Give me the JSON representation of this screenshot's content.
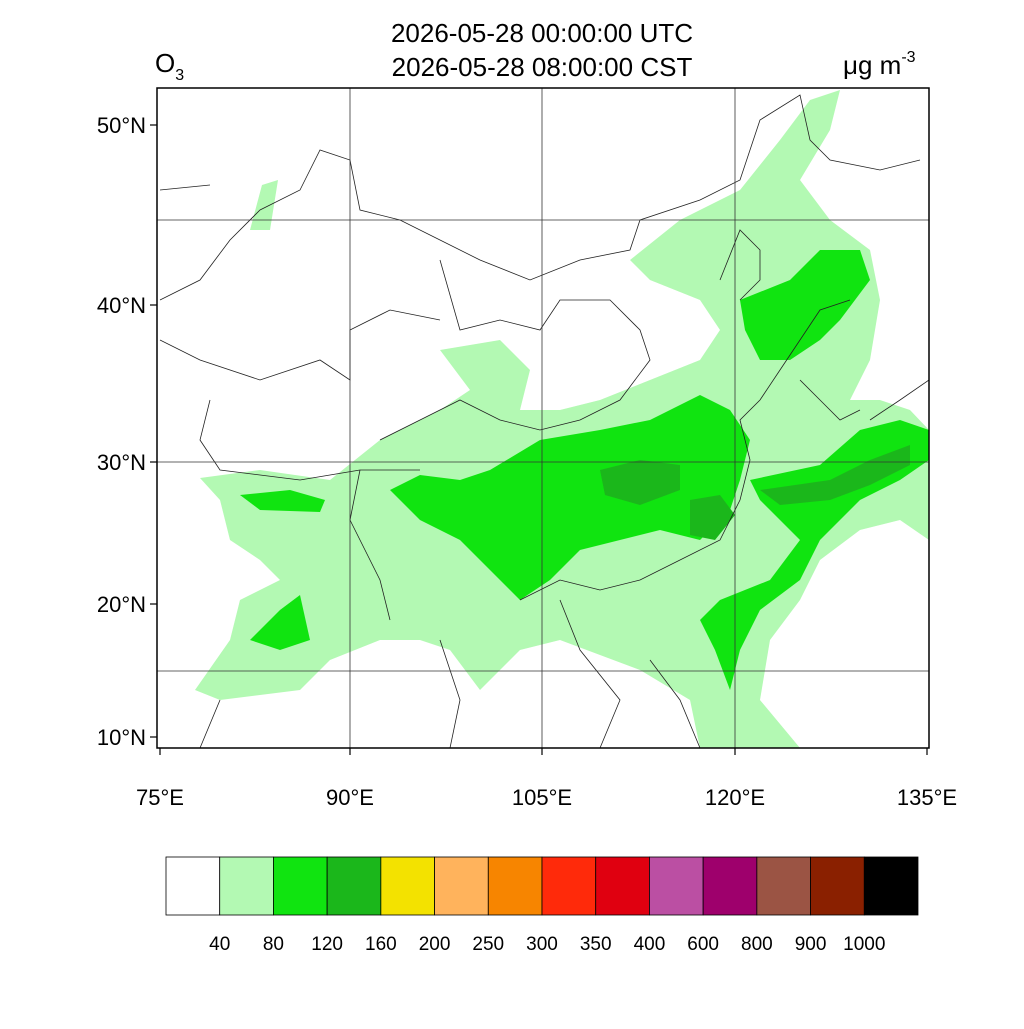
{
  "title": [
    "2026-05-28 00:00:00 UTC",
    "2026-05-28 08:00:00 CST"
  ],
  "variable": {
    "name": "O",
    "subscript": "3"
  },
  "units": {
    "text": "μg m",
    "superscript": "-3"
  },
  "lat_labels": [
    "50°N",
    "40°N",
    "30°N",
    "20°N",
    "10°N"
  ],
  "lon_labels": [
    "75°E",
    "90°E",
    "105°E",
    "120°E",
    "135°E"
  ],
  "colorbar": {
    "colors": [
      "#ffffff",
      "#b3f9b3",
      "#10e410",
      "#1bb71b",
      "#f3e200",
      "#ffb35c",
      "#f78500",
      "#ff2a0a",
      "#e00010",
      "#bb4fa3",
      "#9e006c",
      "#9b5444",
      "#8a2000",
      "#000000"
    ],
    "labels": [
      "40",
      "80",
      "120",
      "160",
      "200",
      "250",
      "300",
      "350",
      "400",
      "600",
      "800",
      "900",
      "1000"
    ]
  }
}
